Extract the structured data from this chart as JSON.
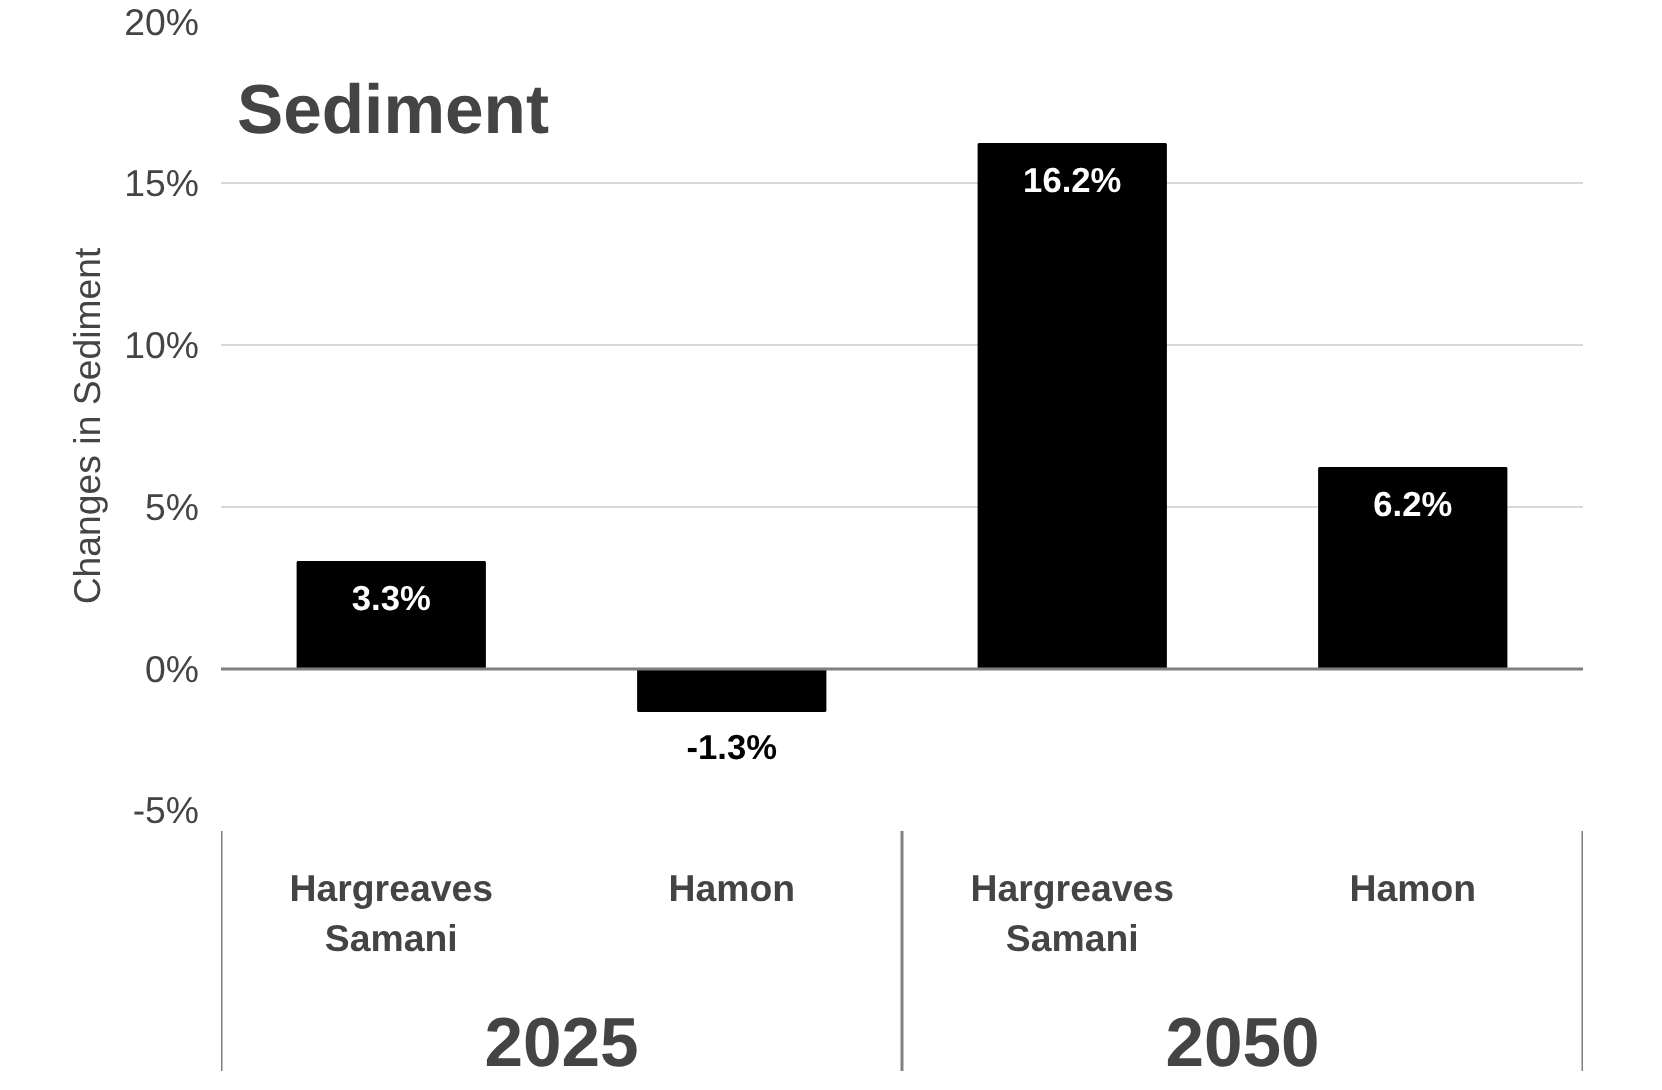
{
  "chart_data": {
    "type": "bar",
    "title": "Sediment",
    "ylabel": "Changes in Sediment",
    "categories": [
      "Hargreaves Samani",
      "Hamon",
      "Hargreaves Samani",
      "Hamon"
    ],
    "values": [
      3.3,
      -1.3,
      16.2,
      6.2
    ],
    "color": "#000000",
    "value_labels": [
      "3.3%",
      "-1.3%",
      "16.2%",
      "6.2%"
    ],
    "annotations": [
      "2025",
      "2050"
    ],
    "ylim": [
      -5,
      20
    ],
    "yticks": [
      {
        "value": -5,
        "label": "-5%"
      },
      {
        "value": 0,
        "label": "0%"
      },
      {
        "value": 5,
        "label": "5%"
      },
      {
        "value": 10,
        "label": "10%"
      },
      {
        "value": 15,
        "label": "15%"
      },
      {
        "value": 20,
        "label": "20%"
      }
    ],
    "grid": "y"
  }
}
